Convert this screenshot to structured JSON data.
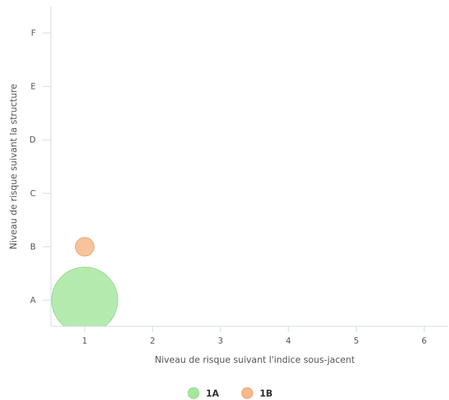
{
  "chart_data": {
    "type": "bubble",
    "xlabel": "Niveau de risque suivant l'indice sous-jacent",
    "ylabel": "Niveau de risque suivant la structure",
    "x_ticks": [
      "1",
      "2",
      "3",
      "4",
      "5",
      "6"
    ],
    "y_categories": [
      "A",
      "B",
      "C",
      "D",
      "E",
      "F"
    ],
    "xlim": [
      0.5,
      6.5
    ],
    "ylim": [
      "A",
      "F"
    ],
    "grid": false,
    "legend_position": "bottom-center",
    "series": [
      {
        "name": "1A",
        "color": "#a8e6a0",
        "stroke": "#90d888",
        "points": [
          {
            "x": 1,
            "y": "A",
            "size": 100
          }
        ]
      },
      {
        "name": "1B",
        "color": "#f5b98a",
        "stroke": "#eca070",
        "points": [
          {
            "x": 1,
            "y": "B",
            "size": 8
          }
        ]
      }
    ]
  }
}
